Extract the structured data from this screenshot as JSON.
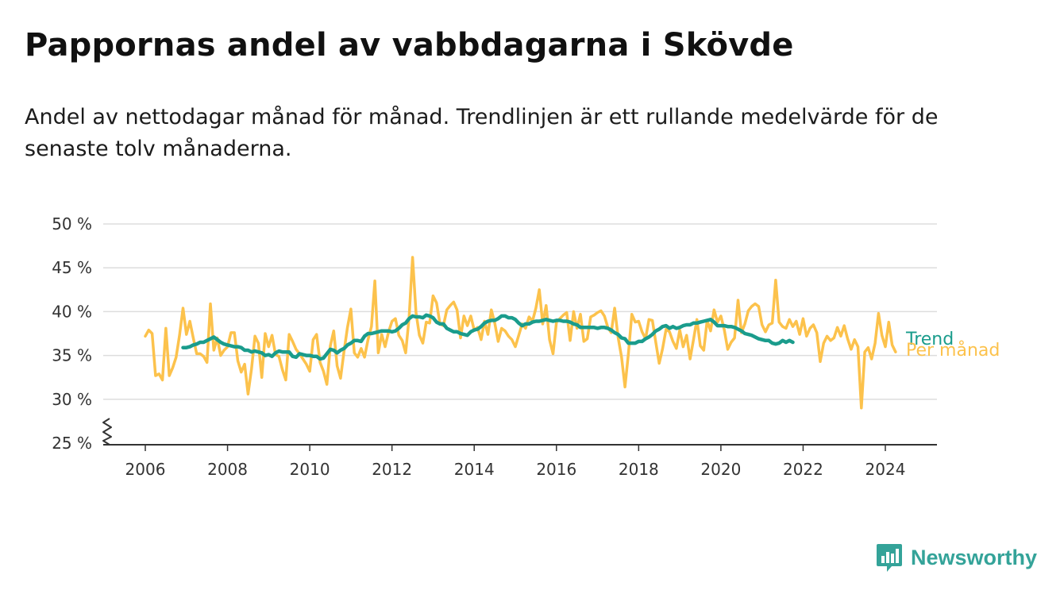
{
  "header": {
    "title": "Pappornas andel av vabbdagarna i Skövde",
    "subtitle": "Andel av nettodagar månad för månad. Trendlinjen är ett rullande medelvärde för de senaste tolv månaderna."
  },
  "brand": {
    "name": "Newsworthy",
    "icon": "newsworthy-logo-icon",
    "color": "#34a399"
  },
  "colors": {
    "monthly": "#fcc24c",
    "trend": "#1a9c8c",
    "grid": "#dddddd",
    "axis": "#333333"
  },
  "chart_data": {
    "type": "line",
    "title": "Pappornas andel av vabbdagarna i Skövde",
    "subtitle": "Andel av nettodagar månad för månad. Trendlinjen är ett rullande medelvärde för de senaste tolv månaderna.",
    "xlabel": "",
    "ylabel": "",
    "x_start": "2006-01",
    "x_frequency": "monthly",
    "xlim": [
      2006,
      2024.5
    ],
    "ylim": [
      25,
      50
    ],
    "y_ticks": [
      25,
      30,
      35,
      40,
      45,
      50
    ],
    "y_tick_labels": [
      "25 %",
      "30 %",
      "35 %",
      "40 %",
      "45 %",
      "50 %"
    ],
    "x_ticks": [
      2006,
      2008,
      2010,
      2012,
      2014,
      2016,
      2018,
      2020,
      2022,
      2024
    ],
    "x_tick_labels": [
      "2006",
      "2008",
      "2010",
      "2012",
      "2014",
      "2016",
      "2018",
      "2020",
      "2022",
      "2024"
    ],
    "y_axis_break": true,
    "grid": "horizontal",
    "legend": "direct labels at line ends",
    "series": [
      {
        "name": "Per månad",
        "values": [
          37.2,
          37.9,
          37.5,
          32.7,
          32.9,
          32.2,
          38.1,
          32.7,
          33.6,
          34.8,
          37.3,
          40.4,
          37.4,
          38.9,
          37.0,
          35.2,
          35.2,
          34.9,
          34.2,
          40.9,
          35.6,
          37.0,
          35.0,
          35.6,
          36.0,
          37.6,
          37.6,
          34.4,
          33.1,
          34.0,
          30.6,
          33.5,
          37.2,
          36.4,
          32.5,
          37.5,
          36.0,
          37.3,
          35.1,
          34.9,
          33.4,
          32.2,
          37.4,
          36.6,
          35.7,
          35.2,
          34.6,
          34.0,
          33.2,
          36.8,
          37.4,
          34.2,
          33.2,
          31.7,
          36.1,
          37.8,
          33.8,
          32.4,
          35.5,
          38.2,
          40.3,
          35.3,
          34.8,
          35.8,
          34.8,
          36.8,
          38.3,
          43.5,
          35.3,
          37.4,
          36.0,
          37.7,
          38.9,
          39.2,
          37.3,
          36.7,
          35.3,
          39.3,
          46.2,
          39.9,
          37.3,
          36.4,
          38.8,
          38.7,
          41.8,
          41.0,
          38.6,
          38.4,
          40.2,
          40.7,
          41.1,
          40.2,
          37.0,
          39.5,
          38.4,
          39.5,
          37.9,
          38.2,
          36.8,
          38.9,
          37.4,
          40.2,
          38.7,
          36.6,
          38.1,
          37.8,
          37.2,
          36.8,
          36.0,
          37.3,
          38.6,
          38.1,
          39.4,
          38.9,
          40.4,
          42.5,
          38.6,
          40.7,
          36.8,
          35.2,
          38.8,
          39.2,
          39.6,
          39.9,
          36.7,
          40.0,
          38.1,
          39.7,
          36.6,
          36.9,
          39.4,
          39.6,
          39.9,
          40.1,
          39.5,
          38.2,
          37.6,
          40.4,
          37.1,
          34.8,
          31.4,
          35.2,
          39.7,
          38.8,
          38.9,
          37.7,
          36.9,
          39.1,
          39.0,
          36.5,
          34.1,
          35.8,
          38.0,
          37.7,
          36.6,
          35.8,
          37.9,
          36.0,
          37.3,
          34.6,
          36.8,
          39.1,
          36.1,
          35.6,
          39.0,
          37.8,
          40.2,
          38.8,
          39.5,
          37.9,
          35.7,
          36.5,
          37.0,
          41.3,
          37.6,
          38.6,
          40.1,
          40.6,
          40.9,
          40.6,
          38.5,
          37.7,
          38.5,
          38.7,
          43.6,
          38.8,
          38.3,
          38.1,
          39.1,
          38.3,
          38.9,
          37.4,
          39.2,
          37.2,
          38.1,
          38.5,
          37.6,
          34.3,
          36.4,
          37.2,
          36.7,
          37.0,
          38.2,
          37.2,
          38.4,
          36.9,
          35.7,
          36.8,
          36.0,
          29.0,
          35.4,
          35.9,
          34.6,
          36.4,
          39.8,
          37.3,
          36.0,
          38.8,
          36.2,
          35.4
        ]
      },
      {
        "name": "Trend",
        "start": "2006-12",
        "values": [
          35.9,
          35.9,
          36.0,
          36.2,
          36.3,
          36.5,
          36.5,
          36.7,
          36.9,
          37.1,
          36.8,
          36.5,
          36.3,
          36.2,
          36.1,
          36.0,
          36.0,
          35.9,
          35.6,
          35.6,
          35.4,
          35.5,
          35.4,
          35.3,
          35.0,
          35.1,
          34.9,
          35.3,
          35.5,
          35.4,
          35.4,
          35.4,
          34.9,
          34.8,
          35.2,
          35.1,
          35.0,
          35.0,
          34.9,
          34.9,
          34.6,
          34.7,
          35.2,
          35.7,
          35.6,
          35.3,
          35.6,
          35.8,
          36.2,
          36.4,
          36.7,
          36.7,
          36.6,
          37.2,
          37.5,
          37.5,
          37.6,
          37.7,
          37.8,
          37.8,
          37.8,
          37.7,
          37.8,
          38.1,
          38.5,
          38.7,
          39.2,
          39.5,
          39.4,
          39.4,
          39.3,
          39.6,
          39.5,
          39.3,
          38.8,
          38.6,
          38.6,
          38.1,
          37.9,
          37.7,
          37.7,
          37.5,
          37.4,
          37.3,
          37.7,
          37.9,
          38.0,
          38.3,
          38.7,
          38.9,
          39.0,
          39.0,
          39.2,
          39.5,
          39.5,
          39.3,
          39.3,
          39.1,
          38.7,
          38.4,
          38.6,
          38.6,
          38.8,
          38.9,
          38.9,
          39.0,
          39.1,
          39.0,
          38.9,
          39.0,
          39.0,
          38.9,
          38.9,
          38.8,
          38.6,
          38.5,
          38.2,
          38.2,
          38.2,
          38.2,
          38.2,
          38.1,
          38.2,
          38.2,
          38.1,
          37.9,
          37.6,
          37.4,
          37.0,
          36.9,
          36.4,
          36.4,
          36.4,
          36.6,
          36.6,
          36.9,
          37.1,
          37.4,
          37.8,
          38.0,
          38.3,
          38.4,
          38.1,
          38.3,
          38.1,
          38.2,
          38.4,
          38.5,
          38.5,
          38.7,
          38.7,
          38.8,
          38.9,
          39.0,
          39.1,
          38.8,
          38.4,
          38.4,
          38.4,
          38.3,
          38.3,
          38.2,
          38.0,
          37.8,
          37.5,
          37.4,
          37.3,
          37.1,
          36.9,
          36.8,
          36.7,
          36.7,
          36.4,
          36.3,
          36.4,
          36.7,
          36.5,
          36.7,
          36.5
        ]
      }
    ]
  }
}
